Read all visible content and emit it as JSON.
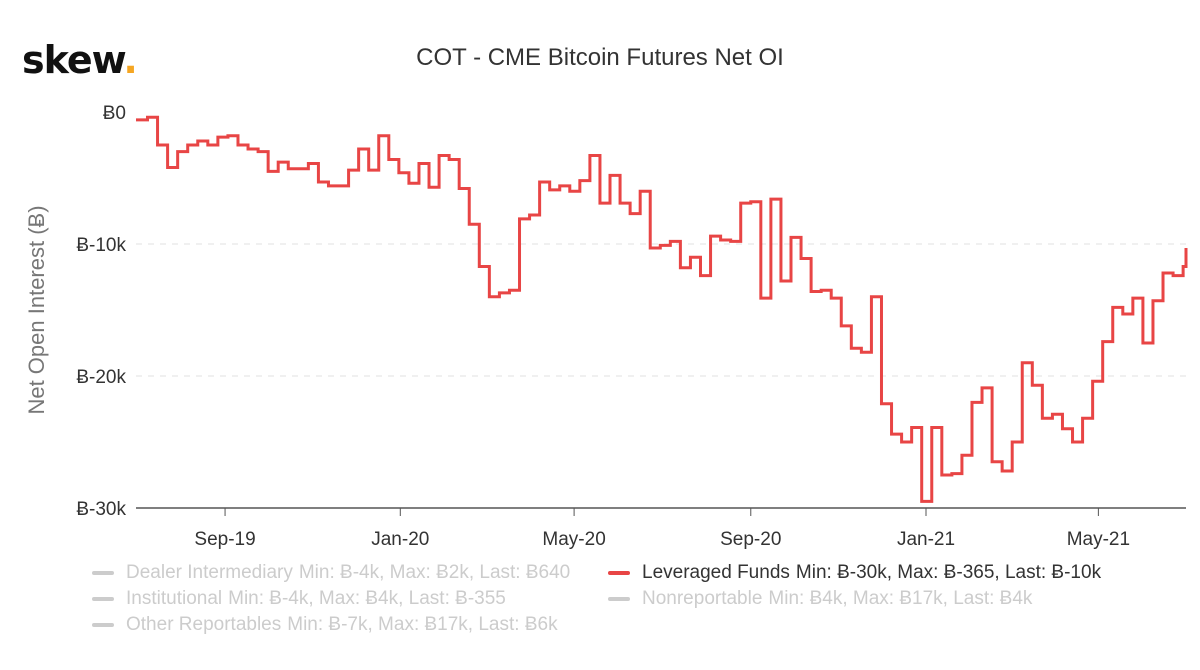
{
  "logo": {
    "text": "skew",
    "dot": "."
  },
  "chart_data": {
    "type": "line",
    "title": "COT - CME Bitcoin Futures Net OI",
    "ylabel": "Net Open Interest (Ƀ)",
    "xlabel": "",
    "ylim": [
      -30000,
      0
    ],
    "yticks": [
      0,
      -10000,
      -20000,
      -30000
    ],
    "ytick_labels": [
      "Ƀ0",
      "Ƀ-10k",
      "Ƀ-20k",
      "Ƀ-30k"
    ],
    "xlim": [
      "2019-07-01",
      "2021-07-01"
    ],
    "xticks": [
      "2019-09-01",
      "2020-01-01",
      "2020-05-01",
      "2020-09-01",
      "2021-01-01",
      "2021-05-01"
    ],
    "xtick_labels": [
      "Sep-19",
      "Jan-20",
      "May-20",
      "Sep-20",
      "Jan-21",
      "May-21"
    ],
    "grid": true,
    "line_shape": "step",
    "series": [
      {
        "name": "Leveraged Funds",
        "color": "#e84545",
        "visible": true,
        "x": [
          "2019-07-02",
          "2019-07-09",
          "2019-07-16",
          "2019-07-23",
          "2019-07-30",
          "2019-08-06",
          "2019-08-13",
          "2019-08-20",
          "2019-08-27",
          "2019-09-03",
          "2019-09-10",
          "2019-09-17",
          "2019-09-24",
          "2019-10-01",
          "2019-10-08",
          "2019-10-15",
          "2019-10-22",
          "2019-10-29",
          "2019-11-05",
          "2019-11-12",
          "2019-11-19",
          "2019-11-26",
          "2019-12-03",
          "2019-12-10",
          "2019-12-17",
          "2019-12-24",
          "2019-12-31",
          "2020-01-07",
          "2020-01-14",
          "2020-01-21",
          "2020-01-28",
          "2020-02-04",
          "2020-02-11",
          "2020-02-18",
          "2020-02-25",
          "2020-03-03",
          "2020-03-10",
          "2020-03-17",
          "2020-03-24",
          "2020-03-31",
          "2020-04-07",
          "2020-04-14",
          "2020-04-21",
          "2020-04-28",
          "2020-05-05",
          "2020-05-12",
          "2020-05-19",
          "2020-05-26",
          "2020-06-02",
          "2020-06-09",
          "2020-06-16",
          "2020-06-23",
          "2020-06-30",
          "2020-07-07",
          "2020-07-14",
          "2020-07-21",
          "2020-07-28",
          "2020-08-04",
          "2020-08-11",
          "2020-08-18",
          "2020-08-25",
          "2020-09-01",
          "2020-09-08",
          "2020-09-15",
          "2020-09-22",
          "2020-09-29",
          "2020-10-06",
          "2020-10-13",
          "2020-10-20",
          "2020-10-27",
          "2020-11-03",
          "2020-11-10",
          "2020-11-17",
          "2020-11-24",
          "2020-12-01",
          "2020-12-08",
          "2020-12-15",
          "2020-12-22",
          "2020-12-29",
          "2021-01-05",
          "2021-01-12",
          "2021-01-19",
          "2021-01-26",
          "2021-02-02",
          "2021-02-09",
          "2021-02-16",
          "2021-02-23",
          "2021-03-02",
          "2021-03-09",
          "2021-03-16",
          "2021-03-23",
          "2021-03-30",
          "2021-04-06",
          "2021-04-13",
          "2021-04-20",
          "2021-04-27",
          "2021-05-04",
          "2021-05-11",
          "2021-05-18",
          "2021-05-25",
          "2021-06-01",
          "2021-06-08",
          "2021-06-15",
          "2021-06-22",
          "2021-06-29"
        ],
        "values": [
          -600,
          -400,
          -2500,
          -4200,
          -3000,
          -2500,
          -2200,
          -2500,
          -1900,
          -1800,
          -2500,
          -2800,
          -3000,
          -4500,
          -3800,
          -4300,
          -4300,
          -3900,
          -5300,
          -5600,
          -5600,
          -4400,
          -2800,
          -4400,
          -1800,
          -3600,
          -4600,
          -5400,
          -3900,
          -5700,
          -3300,
          -3600,
          -5800,
          -8500,
          -11700,
          -14000,
          -13700,
          -13500,
          -8100,
          -7800,
          -5300,
          -5900,
          -5600,
          -6000,
          -5200,
          -3300,
          -6900,
          -4800,
          -6900,
          -7700,
          -6000,
          -10300,
          -10100,
          -9800,
          -11800,
          -11000,
          -12400,
          -9400,
          -9700,
          -9800,
          -6900,
          -6800,
          -14100,
          -6600,
          -12800,
          -9500,
          -11100,
          -13600,
          -13500,
          -14100,
          -16200,
          -17900,
          -18200,
          -14000,
          -22100,
          -24400,
          -25000,
          -23900,
          -29500,
          -23900,
          -27500,
          -27400,
          -26000,
          -22000,
          -20900,
          -26500,
          -27200,
          -25000,
          -19000,
          -20700,
          -23200,
          -22900,
          -24000,
          -25000,
          -23200,
          -20400,
          -17400,
          -14800,
          -15300,
          -14100,
          -17500,
          -14300,
          -12200,
          -12400,
          -11700
        ],
        "stats": "Min: Ƀ-30k, Max: Ƀ-365, Last: Ƀ-10k"
      }
    ]
  },
  "legend": [
    {
      "name": "Dealer Intermediary",
      "stats": "Min: Ƀ-4k, Max: Ƀ2k, Last: Ƀ640",
      "visible": false,
      "color": "#cccccc"
    },
    {
      "name": "Leveraged Funds",
      "stats": "Min: Ƀ-30k, Max: Ƀ-365, Last: Ƀ-10k",
      "visible": true,
      "color": "#e84545"
    },
    {
      "name": "Institutional",
      "stats": "Min: Ƀ-4k, Max: Ƀ4k, Last: Ƀ-355",
      "visible": false,
      "color": "#cccccc"
    },
    {
      "name": "Nonreportable",
      "stats": "Min: Ƀ4k, Max: Ƀ17k, Last: Ƀ4k",
      "visible": false,
      "color": "#cccccc"
    },
    {
      "name": "Other Reportables",
      "stats": "Min: Ƀ-7k, Max: Ƀ17k, Last: Ƀ6k",
      "visible": false,
      "color": "#cccccc"
    }
  ]
}
